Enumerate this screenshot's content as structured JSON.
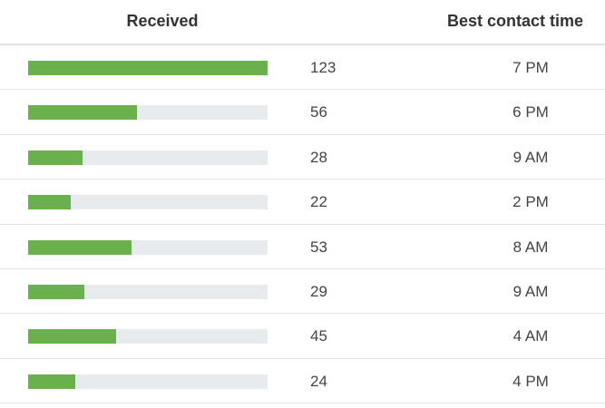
{
  "table": {
    "columns": [
      "Received",
      "Best contact time"
    ],
    "rows": [
      {
        "received": 123,
        "best_contact_time": "7 PM"
      },
      {
        "received": 56,
        "best_contact_time": "6 PM"
      },
      {
        "received": 28,
        "best_contact_time": "9 AM"
      },
      {
        "received": 22,
        "best_contact_time": "2 PM"
      },
      {
        "received": 53,
        "best_contact_time": "8 AM"
      },
      {
        "received": 29,
        "best_contact_time": "9 AM"
      },
      {
        "received": 45,
        "best_contact_time": "4 AM"
      },
      {
        "received": 24,
        "best_contact_time": "4 PM"
      }
    ]
  }
}
